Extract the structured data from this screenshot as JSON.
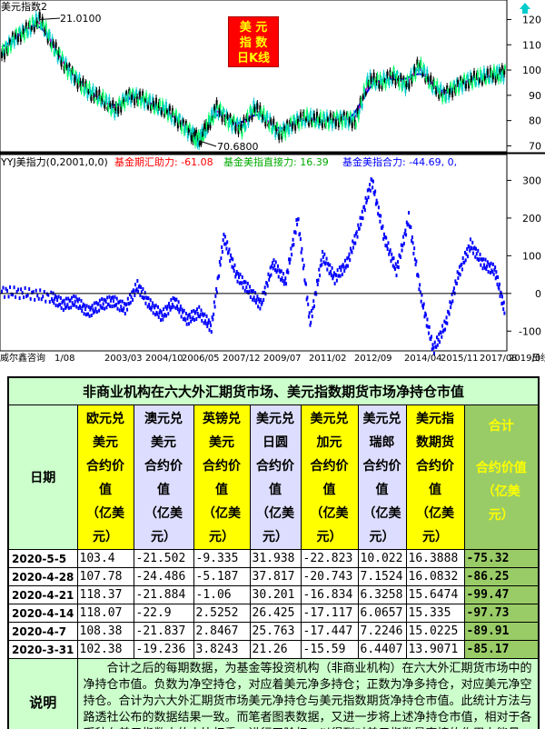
{
  "chart_data": [
    {
      "type": "line",
      "title": "美元指数2",
      "series": [
        {
          "name": "",
          "x": [
            2000.5,
            2001.0,
            2001.5,
            2002.0,
            2002.5,
            2003.0,
            2003.5,
            2004.0,
            2004.5,
            2005.0,
            2005.5,
            2006.0,
            2006.5,
            2007.0,
            2007.5,
            2008.0,
            2008.3,
            2008.6,
            2009.0,
            2009.5,
            2010.0,
            2010.5,
            2011.0,
            2011.5,
            2012.0,
            2012.5,
            2013.0,
            2013.5,
            2014.0,
            2014.5,
            2015.0,
            2015.5,
            2016.0,
            2016.5,
            2017.0,
            2017.5,
            2018.0,
            2018.5,
            2019.0,
            2019.5,
            2020.0,
            2020.4
          ],
          "values": [
            106,
            113,
            116,
            120,
            110,
            102,
            96,
            91,
            88,
            84,
            90,
            89,
            86,
            84,
            80,
            75,
            72,
            77,
            85,
            80,
            77,
            85,
            80,
            75,
            79,
            81,
            80,
            80,
            81,
            80,
            96,
            95,
            98,
            94,
            102,
            94,
            90,
            94,
            96,
            97,
            98,
            99
          ]
        }
      ],
      "annotations": [
        "21.0100",
        "70.6800"
      ],
      "y_ticks": [
        70,
        80,
        90,
        100,
        110,
        120
      ],
      "ylim": [
        68,
        127
      ],
      "badge_text": [
        "美 元",
        "指 数",
        "日K线"
      ]
    },
    {
      "type": "scatter",
      "title": "YYJ美指力(0,2001,0,0)",
      "legend": [
        {
          "label": "基金期汇助力: -61.08",
          "color": "#ff0000"
        },
        {
          "label": "基金美指直接力: 16.39",
          "color": "#00aa00"
        },
        {
          "label": "基金美指合力: -44.69, 0,",
          "color": "#0000ff"
        }
      ],
      "series": [
        {
          "name": "",
          "x": [
            2000.0,
            2001.0,
            2002.0,
            2002.5,
            2003.0,
            2003.5,
            2004.0,
            2004.5,
            2005.0,
            2005.5,
            2006.0,
            2006.5,
            2007.0,
            2007.5,
            2008.0,
            2008.5,
            2009.0,
            2009.5,
            2010.0,
            2010.5,
            2011.0,
            2011.5,
            2012.0,
            2012.5,
            2013.0,
            2013.5,
            2014.0,
            2014.5,
            2015.0,
            2015.5,
            2016.0,
            2016.5,
            2017.0,
            2017.5,
            2018.0,
            2018.5,
            2019.0,
            2019.5,
            2020.0,
            2020.4
          ],
          "values": [
            5,
            0,
            -10,
            -30,
            -20,
            -50,
            -30,
            -20,
            -40,
            20,
            -30,
            -60,
            -20,
            -70,
            -50,
            -90,
            150,
            50,
            10,
            -30,
            80,
            30,
            200,
            -80,
            100,
            40,
            80,
            180,
            300,
            150,
            60,
            200,
            -10,
            -150,
            -80,
            50,
            130,
            80,
            60,
            -50
          ]
        }
      ],
      "y_ticks": [
        -100,
        0,
        100,
        200,
        300
      ],
      "ylim": [
        -150,
        330
      ],
      "xlabels": [
        "威尔鑫咨询",
        "1/08",
        "2003/03",
        "2004/10",
        "2006/05",
        "2007/12",
        "2009/07",
        "2011/02",
        "2012/09",
        "2014/04",
        "2015/11",
        "2017/08",
        "2019/0",
        "日线"
      ]
    },
    {
      "type": "table",
      "title": "非商业机构在六大外汇期货市场、美元指数期货市场净持仓市值",
      "columns": [
        {
          "key": "date",
          "label": [
            "日期"
          ]
        },
        {
          "key": "eur",
          "label": [
            "欧元兑",
            "美元",
            "合约价",
            "值",
            "（亿美",
            "元）"
          ]
        },
        {
          "key": "aud",
          "label": [
            "澳元兑",
            "美元",
            "合约价",
            "值",
            "（亿美",
            "元）"
          ]
        },
        {
          "key": "gbp",
          "label": [
            "英镑兑",
            "美元",
            "合约价",
            "值",
            "（亿美",
            "元）"
          ]
        },
        {
          "key": "jpy",
          "label": [
            "美元兑",
            "日圆",
            "合约价",
            "值",
            "（亿美",
            "元）"
          ]
        },
        {
          "key": "cad",
          "label": [
            "美元兑",
            "加元",
            "合约价",
            "值",
            "（亿美",
            "元）"
          ]
        },
        {
          "key": "chf",
          "label": [
            "美元兑",
            "瑞郎",
            "合约价",
            "值",
            "（亿美",
            "元）"
          ]
        },
        {
          "key": "dxy",
          "label": [
            "美元指",
            "数期货",
            "合约价",
            "值",
            "（亿美",
            "元）"
          ]
        },
        {
          "key": "sum",
          "label": [
            "合计",
            "合约价值",
            "（亿美",
            "元）"
          ]
        }
      ],
      "rows": [
        {
          "date": "2020-5-5",
          "eur": "103.4",
          "aud": "-21.502",
          "gbp": "-9.335",
          "jpy": "31.938",
          "cad": "-22.823",
          "chf": "10.022",
          "dxy": "16.3888",
          "sum": "-75.32"
        },
        {
          "date": "2020-4-28",
          "eur": "107.78",
          "aud": "-24.486",
          "gbp": "-5.187",
          "jpy": "37.817",
          "cad": "-20.743",
          "chf": "7.1524",
          "dxy": "16.0832",
          "sum": "-86.25"
        },
        {
          "date": "2020-4-21",
          "eur": "118.37",
          "aud": "-21.884",
          "gbp": "-1.06",
          "jpy": "30.201",
          "cad": "-16.834",
          "chf": "6.3258",
          "dxy": "15.6474",
          "sum": "-99.47"
        },
        {
          "date": "2020-4-14",
          "eur": "118.07",
          "aud": "-22.9",
          "gbp": "2.5252",
          "jpy": "26.425",
          "cad": "-17.117",
          "chf": "6.0657",
          "dxy": "15.335",
          "sum": "-97.73"
        },
        {
          "date": "2020-4-7",
          "eur": "108.38",
          "aud": "-21.837",
          "gbp": "2.8467",
          "jpy": "25.763",
          "cad": "-17.447",
          "chf": "7.2246",
          "dxy": "15.0225",
          "sum": "-89.91"
        },
        {
          "date": "2020-3-31",
          "eur": "102.38",
          "aud": "-19.236",
          "gbp": "3.8243",
          "jpy": "21.26",
          "cad": "-15.59",
          "chf": "6.4407",
          "dxy": "13.9071",
          "sum": "-85.17"
        }
      ],
      "note_label": "说明",
      "note": "合计之后的每期数据，为基金等投资机构（非商业机构）在六大外汇期货市场中的净持仓市值。负数为净空持仓，对应着美元净多持仓；正数为净多持仓，对应美元净空持仓。合计为六大外汇期货市场美元净持仓与美元指数期货净持仓市值。此统计方法与路透社公布的数据结果一致。而笔者图表数据，又进一步将上述净持仓市值，相对于各币种在美元指数中的占比权重，进行了除权，以得到对美元指数最直接的作用力能量。"
    }
  ],
  "colors": {
    "ma_magenta": "#cc00cc",
    "ma_blue": "#0000cc",
    "candle_cyan": "#00cccc",
    "candle_green": "#00ff66",
    "candle_black": "#000000",
    "force_blue": "#0000ff",
    "up_arrow": "#00cccc"
  }
}
